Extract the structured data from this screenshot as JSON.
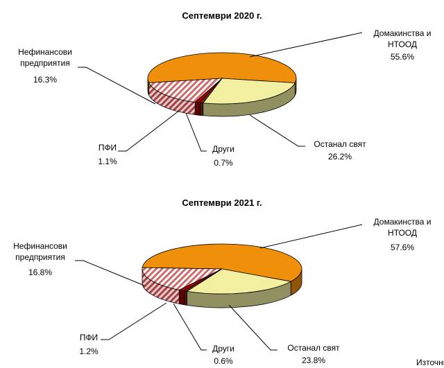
{
  "chart_data": [
    {
      "type": "pie3d",
      "title": "Септември 2020 г.",
      "categories": [
        "Домакинства и\nНТООД",
        "Останал  свят",
        "Други",
        "ПФИ",
        "Нефинансови\nпредприятия"
      ],
      "values": [
        55.6,
        26.2,
        0.7,
        1.1,
        16.3
      ],
      "value_labels": [
        "55.6%",
        "26.2%",
        "0.7%",
        "1.1%",
        "16.3%"
      ],
      "colors": [
        "#f0900a",
        "#f2f0a0",
        "#7a2a10",
        "#a00000",
        "hatch"
      ]
    },
    {
      "type": "pie3d",
      "title": "Септември 2021 г.",
      "categories": [
        "Домакинства и\nНТООД",
        "Останал  свят",
        "Други",
        "ПФИ",
        "Нефинансови\nпредприятия"
      ],
      "values": [
        57.6,
        23.8,
        0.6,
        1.2,
        16.8
      ],
      "value_labels": [
        "57.6%",
        "23.8%",
        "0.6%",
        "1.2%",
        "16.8%"
      ],
      "colors": [
        "#f0900a",
        "#f2f0a0",
        "#7a2a10",
        "#a00000",
        "hatch"
      ]
    }
  ],
  "source": "Източни"
}
